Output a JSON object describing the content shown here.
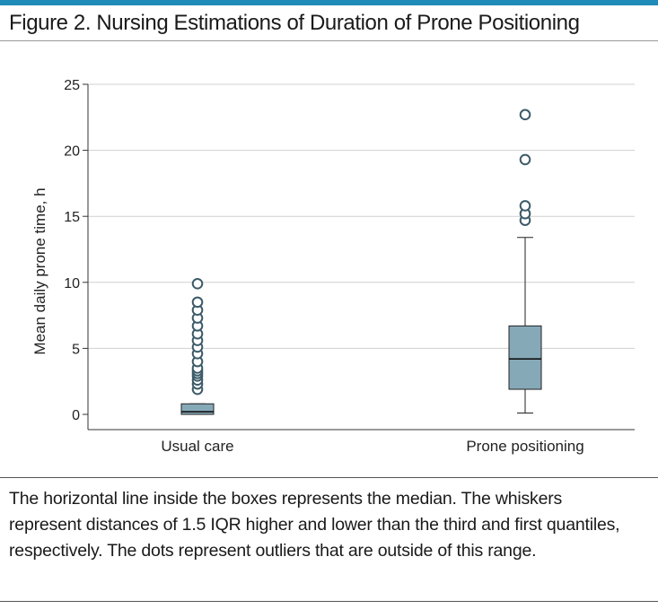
{
  "figure": {
    "title": "Figure 2. Nursing Estimations of Duration of Prone Positioning",
    "caption": "The horizontal line inside the boxes represents the median. The whiskers represent distances of 1.5 IQR higher and lower than the third and first quantiles, respectively. The dots represent outliers that are outside of this range."
  },
  "colors": {
    "accent_rule": "#1f8bb8",
    "box_fill": "#86a9b8",
    "outlier_stroke": "#3c5a68",
    "grid": "#d0d0d0",
    "axis": "#333333"
  },
  "chart_data": {
    "type": "boxplot",
    "title": "",
    "xlabel": "",
    "ylabel": "Mean daily prone time, h",
    "ylim": [
      0,
      25
    ],
    "yticks": [
      0,
      5,
      10,
      15,
      20,
      25
    ],
    "grid": true,
    "categories": [
      "Usual care",
      "Prone positioning"
    ],
    "boxes": [
      {
        "category": "Usual care",
        "whisker_low": 0.0,
        "q1": 0.0,
        "median": 0.2,
        "q3": 0.8,
        "whisker_high": 0.8,
        "outliers": [
          1.9,
          2.3,
          2.6,
          2.9,
          3.1,
          3.3,
          3.5,
          4.0,
          4.6,
          5.1,
          5.6,
          6.1,
          6.7,
          7.3,
          7.9,
          8.5,
          9.9
        ]
      },
      {
        "category": "Prone positioning",
        "whisker_low": 0.1,
        "q1": 1.9,
        "median": 4.2,
        "q3": 6.7,
        "whisker_high": 13.4,
        "outliers": [
          14.7,
          15.2,
          15.8,
          19.3,
          22.7
        ]
      }
    ]
  }
}
